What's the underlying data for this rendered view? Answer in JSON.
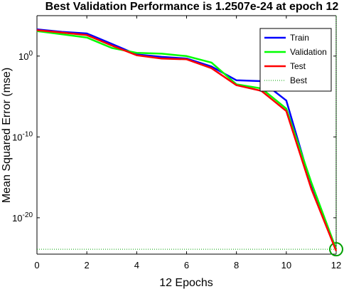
{
  "chart_data": {
    "type": "line",
    "title": "Best Validation Performance is 1.2507e-24 at epoch 12",
    "xlabel": "12 Epochs",
    "ylabel": "Mean Squared Error  (mse)",
    "y_scale": "log",
    "xlim": [
      0,
      12
    ],
    "ylim_exp": [
      -24.5,
      5
    ],
    "x_ticks": [
      0,
      2,
      4,
      6,
      8,
      10,
      12
    ],
    "x_tick_labels": [
      "0",
      "2",
      "4",
      "6",
      "8",
      "10",
      "12"
    ],
    "y_ticks": [
      0,
      -10,
      -20
    ],
    "y_tick_labels": [
      {
        "base": "10",
        "exp": "0"
      },
      {
        "base": "10",
        "exp": "-10"
      },
      {
        "base": "10",
        "exp": "-20"
      }
    ],
    "legend_position": "top-right",
    "x": [
      0,
      1,
      2,
      3,
      4,
      5,
      6,
      7,
      8,
      9,
      10,
      11,
      12
    ],
    "series": [
      {
        "name": "Train",
        "color": "#0000ff",
        "log10_values": [
          3.3,
          3.0,
          2.8,
          1.5,
          0.2,
          -0.1,
          -0.3,
          -1.3,
          -3.0,
          -3.1,
          -5.5,
          -16.0,
          -23.9
        ]
      },
      {
        "name": "Validation",
        "color": "#00ff00",
        "log10_values": [
          3.1,
          2.7,
          2.3,
          1.0,
          0.4,
          0.3,
          0.0,
          -0.8,
          -3.5,
          -4.0,
          -6.5,
          -15.6,
          -23.9
        ]
      },
      {
        "name": "Test",
        "color": "#ff0000",
        "log10_values": [
          3.2,
          2.9,
          2.6,
          1.3,
          0.1,
          -0.3,
          -0.4,
          -1.5,
          -3.6,
          -4.3,
          -6.8,
          -16.4,
          -24.1
        ]
      }
    ],
    "best": {
      "name": "Best",
      "epoch": 12,
      "log10_value": -23.9,
      "color": "#00a000"
    }
  }
}
